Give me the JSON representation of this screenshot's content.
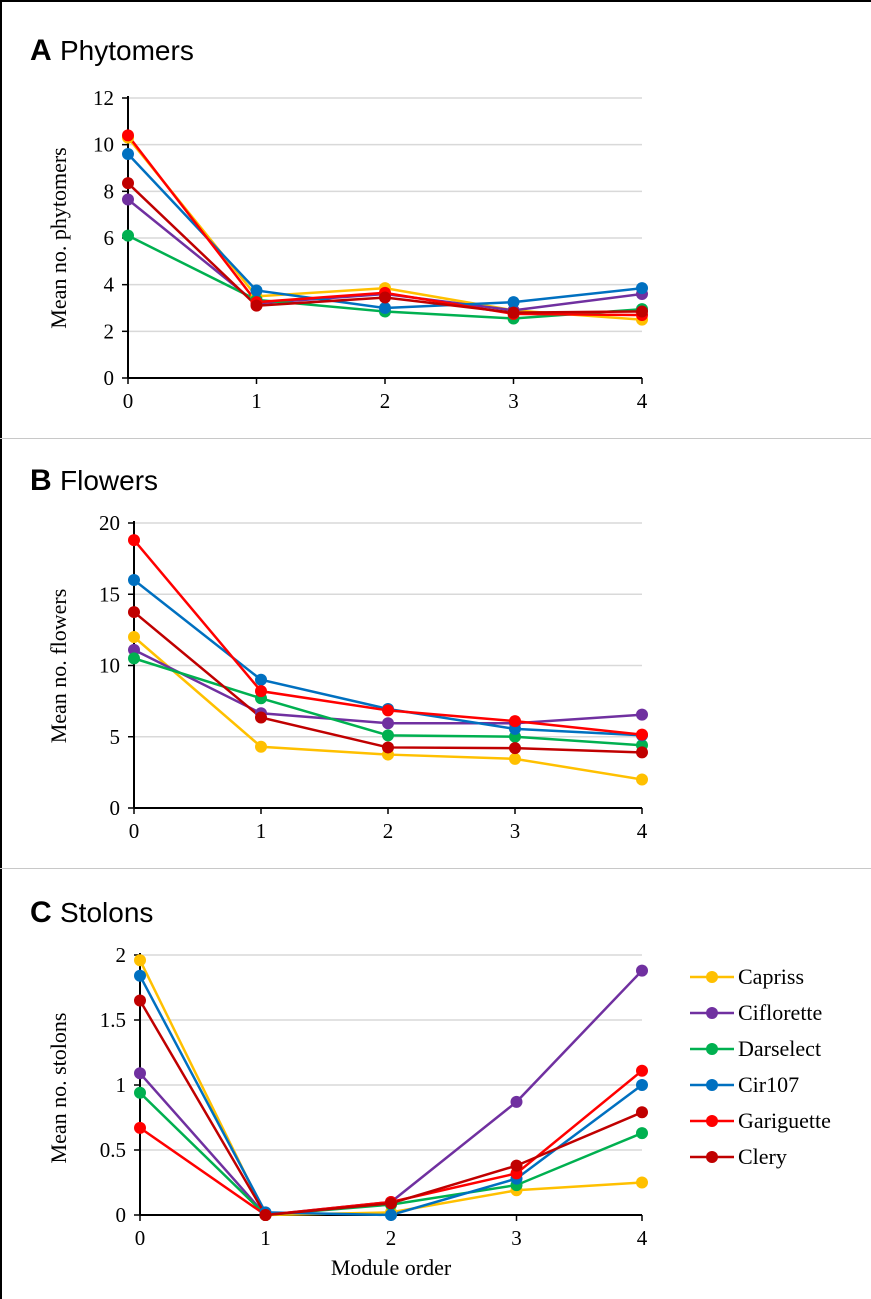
{
  "chart_data": [
    {
      "type": "line",
      "panel_letter": "A",
      "title": "Phytomers",
      "xlabel": "",
      "ylabel": "Mean no. phytomers",
      "x": [
        0,
        1,
        2,
        3,
        4
      ],
      "ylim": [
        0,
        12
      ],
      "yticks": [
        "0",
        "2",
        "4",
        "6",
        "8",
        "10",
        "12"
      ],
      "xticks": [
        "0",
        "1",
        "2",
        "3",
        "4"
      ],
      "grid": true,
      "series": [
        {
          "name": "Capriss",
          "values": [
            10.3,
            3.5,
            3.85,
            2.9,
            2.5
          ]
        },
        {
          "name": "Ciflorette",
          "values": [
            7.65,
            3.2,
            3.6,
            2.9,
            3.6
          ]
        },
        {
          "name": "Darselect",
          "values": [
            6.1,
            3.35,
            2.85,
            2.55,
            2.95
          ]
        },
        {
          "name": "Cir107",
          "values": [
            9.6,
            3.75,
            3.0,
            3.25,
            3.85
          ]
        },
        {
          "name": "Gariguette",
          "values": [
            10.4,
            3.25,
            3.65,
            2.75,
            2.7
          ]
        },
        {
          "name": "Clery",
          "values": [
            8.35,
            3.1,
            3.45,
            2.8,
            2.85
          ]
        }
      ]
    },
    {
      "type": "line",
      "panel_letter": "B",
      "title": "Flowers",
      "xlabel": "",
      "ylabel": "Mean no. flowers",
      "x": [
        0,
        1,
        2,
        3,
        4
      ],
      "ylim": [
        0,
        20
      ],
      "yticks": [
        "0",
        "5",
        "10",
        "15",
        "20"
      ],
      "xticks": [
        "0",
        "1",
        "2",
        "3",
        "4"
      ],
      "grid": true,
      "series": [
        {
          "name": "Capriss",
          "values": [
            12.0,
            4.3,
            3.75,
            3.45,
            2.0
          ]
        },
        {
          "name": "Ciflorette",
          "values": [
            11.1,
            6.65,
            5.95,
            5.95,
            6.55
          ]
        },
        {
          "name": "Darselect",
          "values": [
            10.5,
            7.7,
            5.1,
            5.0,
            4.4
          ]
        },
        {
          "name": "Cir107",
          "values": [
            16.0,
            9.0,
            6.95,
            5.55,
            5.1
          ]
        },
        {
          "name": "Gariguette",
          "values": [
            18.8,
            8.2,
            6.85,
            6.1,
            5.15
          ]
        },
        {
          "name": "Clery",
          "values": [
            13.75,
            6.35,
            4.25,
            4.2,
            3.9
          ]
        }
      ]
    },
    {
      "type": "line",
      "panel_letter": "C",
      "title": "Stolons",
      "xlabel": "Module order",
      "ylabel": "Mean no. stolons",
      "x": [
        0,
        1,
        2,
        3,
        4
      ],
      "ylim": [
        0,
        2
      ],
      "yticks": [
        "0",
        "0.5",
        "1",
        "1.5",
        "2"
      ],
      "xticks": [
        "0",
        "1",
        "2",
        "3",
        "4"
      ],
      "grid": true,
      "legend_position": "right",
      "series": [
        {
          "name": "Capriss",
          "values": [
            1.96,
            0.0,
            0.02,
            0.19,
            0.25
          ]
        },
        {
          "name": "Ciflorette",
          "values": [
            1.09,
            0.0,
            0.1,
            0.87,
            1.88
          ]
        },
        {
          "name": "Darselect",
          "values": [
            0.94,
            0.0,
            0.08,
            0.23,
            0.63
          ]
        },
        {
          "name": "Cir107",
          "values": [
            1.84,
            0.02,
            0.0,
            0.28,
            1.0
          ]
        },
        {
          "name": "Gariguette",
          "values": [
            0.67,
            0.0,
            0.1,
            0.32,
            1.11
          ]
        },
        {
          "name": "Clery",
          "values": [
            1.65,
            0.0,
            0.09,
            0.38,
            0.79
          ]
        }
      ]
    }
  ],
  "colors": {
    "Capriss": "#ffc000",
    "Ciflorette": "#7030a0",
    "Darselect": "#00b050",
    "Cir107": "#0070c0",
    "Gariguette": "#ff0000",
    "Clery": "#c00000",
    "grid": "#d9d9d9",
    "axis": "#000000"
  }
}
